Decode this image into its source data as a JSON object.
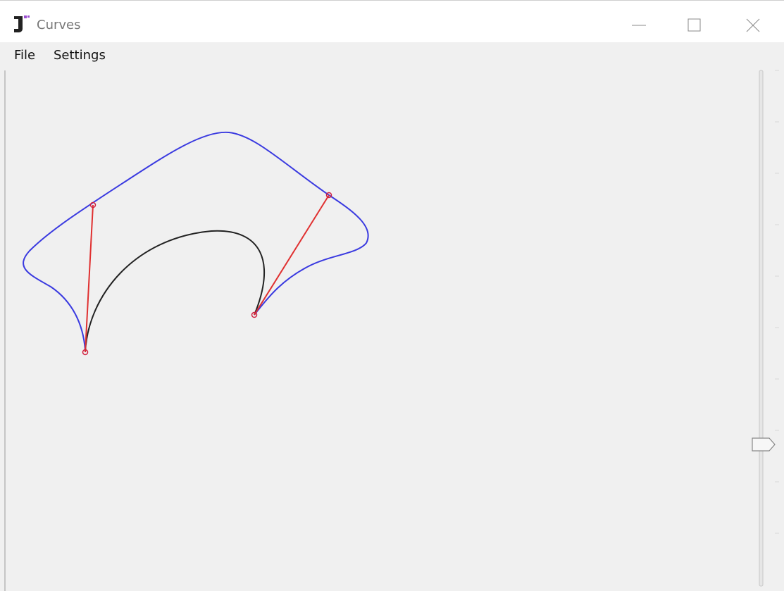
{
  "window": {
    "title": "Curves"
  },
  "menu": [
    "File",
    "Settings"
  ]
}
